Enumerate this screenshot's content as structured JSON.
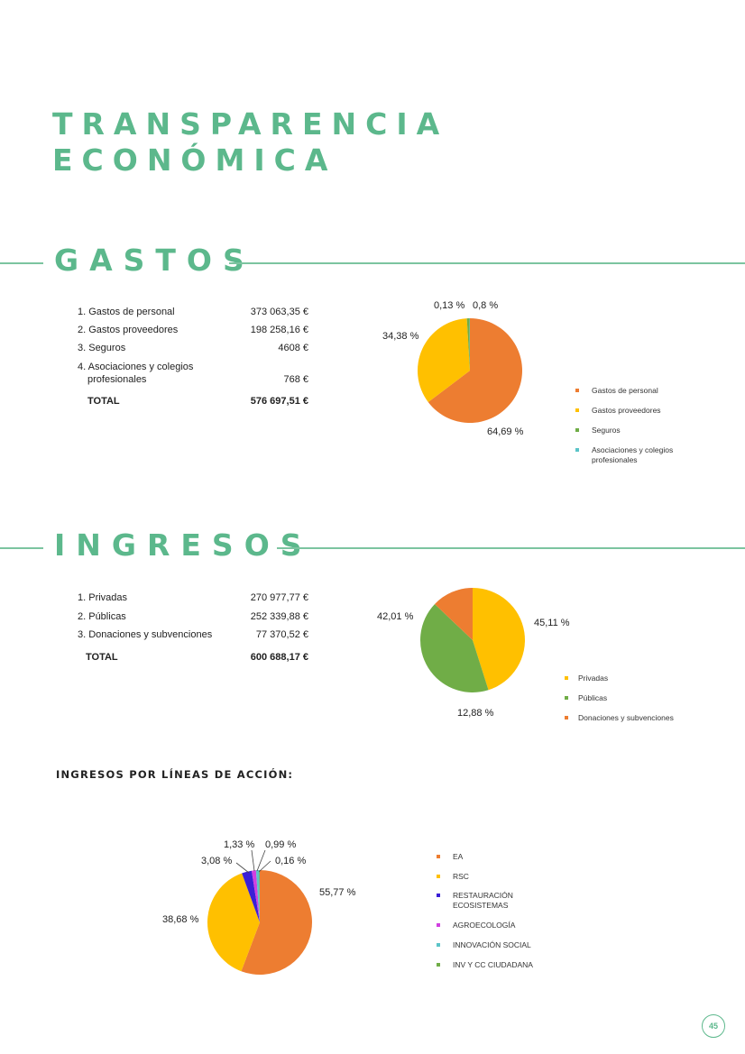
{
  "title_line1": "TRANSPARENCIA",
  "title_line2": "ECONÓMICA",
  "gastos": {
    "heading": "GASTOS",
    "rows": [
      {
        "label": "1. Gastos de personal",
        "amount": "373 063,35 €"
      },
      {
        "label": "2. Gastos proveedores",
        "amount": "198 258,16 €"
      },
      {
        "label": "3. Seguros",
        "amount": "4608 €"
      },
      {
        "label": "4. Asociaciones y colegios",
        "label2": "profesionales",
        "amount": "768 €"
      }
    ],
    "total_label": "TOTAL",
    "total_amount": "576 697,51 €"
  },
  "ingresos": {
    "heading": "INGRESOS",
    "rows": [
      {
        "label": "1. Privadas",
        "amount": "270 977,77 €"
      },
      {
        "label": "2. Públicas",
        "amount": "252 339,88 €"
      },
      {
        "label": "3. Donaciones y subvenciones",
        "amount": "77 370,52 €"
      }
    ],
    "total_label": "TOTAL",
    "total_amount": "600 688,17 €"
  },
  "lineas_title": "INGRESOS POR LÍNEAS DE ACCIÓN:",
  "page_number": "45",
  "chart_data": [
    {
      "type": "pie",
      "categories": [
        "Gastos de personal",
        "Gastos proveedores",
        "Seguros",
        "Asociaciones y colegios profesionales"
      ],
      "values": [
        64.69,
        34.38,
        0.8,
        0.13
      ],
      "data_labels": [
        "64,69 %",
        "34,38 %",
        "0,8 %",
        "0,13 %"
      ],
      "colors": [
        "#ed7d31",
        "#ffc000",
        "#70ad47",
        "#5bc4c8"
      ],
      "legend_position": "right"
    },
    {
      "type": "pie",
      "categories": [
        "Privadas",
        "Públicas",
        "Donaciones y subvenciones"
      ],
      "values": [
        45.11,
        42.01,
        12.88
      ],
      "data_labels": [
        "45,11 %",
        "42,01 %",
        "12,88 %"
      ],
      "colors": [
        "#ffc000",
        "#70ad47",
        "#ed7d31"
      ],
      "legend_position": "right"
    },
    {
      "type": "pie",
      "categories": [
        "EA",
        "RSC",
        "RESTAURACIÓN ECOSISTEMAS",
        "AGROECOLOGÍA",
        "INNOVACIÓN SOCIAL",
        "INV Y CC CIUDADANA"
      ],
      "values": [
        55.77,
        38.68,
        3.08,
        1.33,
        0.99,
        0.16
      ],
      "data_labels": [
        "55,77 %",
        "38,68 %",
        "3,08 %",
        "1,33 %",
        "0,99 %",
        "0,16 %"
      ],
      "colors": [
        "#ed7d31",
        "#ffc000",
        "#3a1fd6",
        "#d13fe0",
        "#5bc4c8",
        "#70ad47"
      ],
      "legend_position": "right"
    }
  ]
}
